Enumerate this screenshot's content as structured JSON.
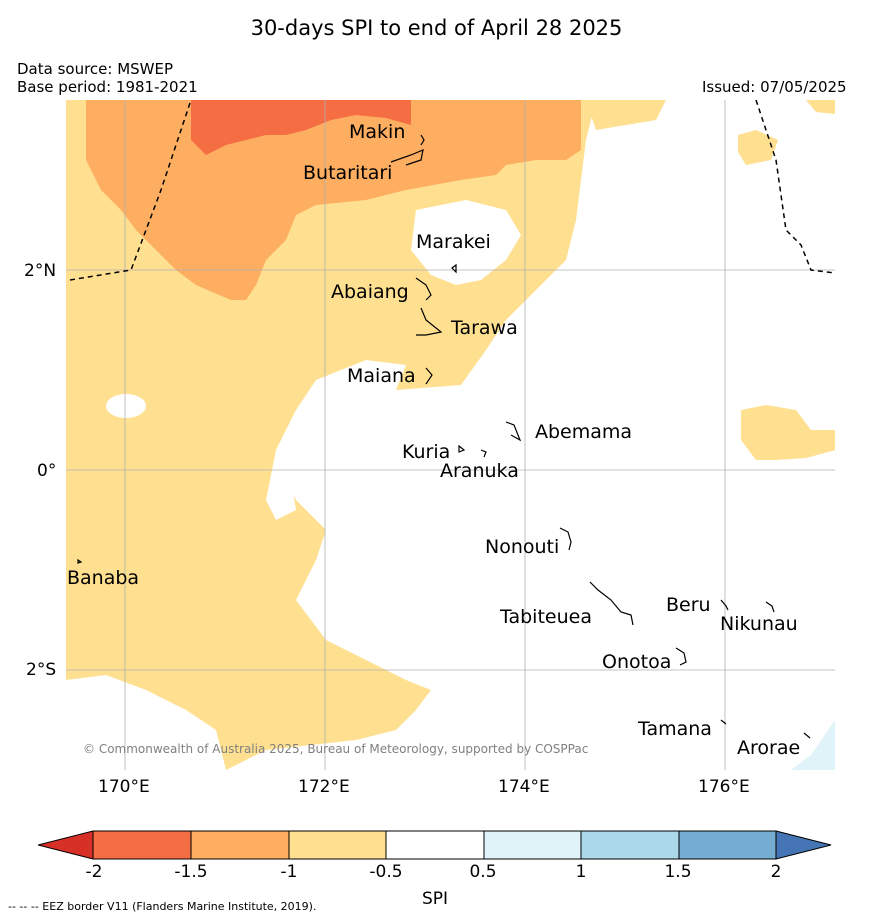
{
  "header": {
    "title": "30-days SPI to end of April 28 2025",
    "data_source": "Data source: MSWEP",
    "base_period": "Base period: 1981-2021",
    "issued": "Issued: 07/05/2025"
  },
  "map": {
    "lat_ticks": [
      "2°N",
      "0°",
      "2°S"
    ],
    "lon_ticks": [
      "170°E",
      "172°E",
      "174°E",
      "176°E"
    ],
    "places": [
      "Makin",
      "Butaritari",
      "Marakei",
      "Abaiang",
      "Tarawa",
      "Maiana",
      "Abemama",
      "Kuria",
      "Aranuka",
      "Nonouti",
      "Banaba",
      "Tabiteuea",
      "Beru",
      "Nikunau",
      "Onotoa",
      "Tamana",
      "Arorae"
    ],
    "copyright": "© Commonwealth of Australia 2025, Bureau of Meteorology, supported by COSPPac",
    "colors": {
      "spi_lt_-1_5": "#f46d43",
      "spi_-1_5_to_-1": "#fdae61",
      "spi_-1_to_-0_5": "#fee090",
      "spi_-0_5_to_0_5": "#ffffff",
      "spi_0_5_to_1": "#e0f3f8",
      "grid": "#b0b0b0"
    }
  },
  "colorbar": {
    "label": "SPI",
    "ticks": [
      "-2",
      "-1.5",
      "-1",
      "-0.5",
      "0.5",
      "1",
      "1.5",
      "2"
    ],
    "colors": [
      "#d73027",
      "#f46d43",
      "#fdae61",
      "#fee090",
      "#ffffff",
      "#e0f3f8",
      "#abd9e9",
      "#74add1",
      "#4575b4"
    ]
  },
  "footer": {
    "eez_note": "--  --  -- EEZ border V11 (Flanders Marine Institute, 2019)."
  }
}
